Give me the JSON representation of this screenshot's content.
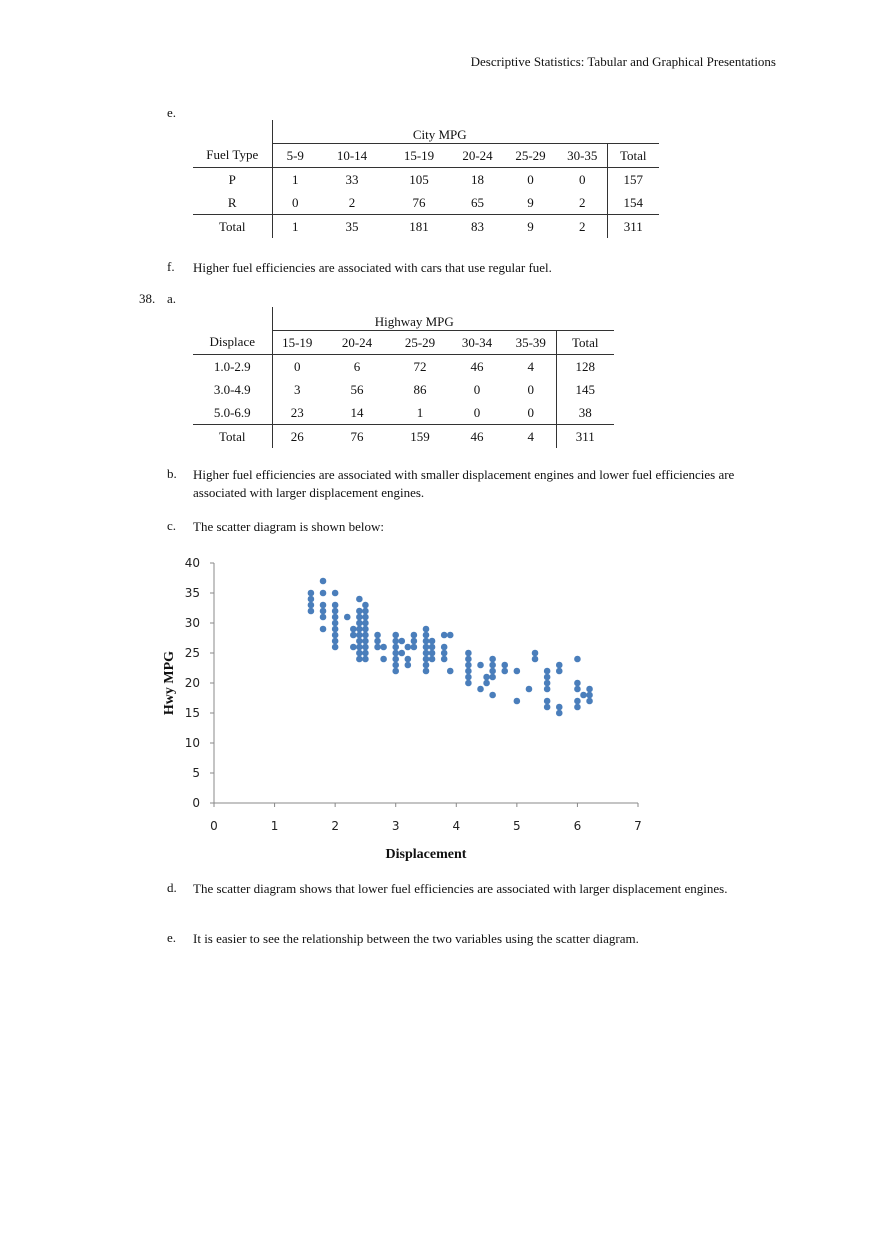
{
  "header": "Descriptive Statistics: Tabular and Graphical Presentations",
  "sec37": {
    "e_label": "e.",
    "table": {
      "group_header": "City MPG",
      "columns": [
        "Fuel Type",
        "5-9",
        "10-14",
        "15-19",
        "20-24",
        "25-29",
        "30-35",
        "Total"
      ],
      "rows": [
        [
          "P",
          "1",
          "33",
          "105",
          "18",
          "0",
          "0",
          "157"
        ],
        [
          "R",
          "0",
          "2",
          "76",
          "65",
          "9",
          "2",
          "154"
        ]
      ],
      "total": [
        "Total",
        "1",
        "35",
        "181",
        "83",
        "9",
        "2",
        "311"
      ]
    },
    "f_label": "f.",
    "f_text": "Higher fuel efficiencies are associated with cars that use regular fuel."
  },
  "sec38": {
    "number": "38.",
    "a_label": "a.",
    "table": {
      "group_header": "Highway MPG",
      "columns": [
        "Displace",
        "15-19",
        "20-24",
        "25-29",
        "30-34",
        "35-39",
        "Total"
      ],
      "rows": [
        [
          "1.0-2.9",
          "0",
          "6",
          "72",
          "46",
          "4",
          "128"
        ],
        [
          "3.0-4.9",
          "3",
          "56",
          "86",
          "0",
          "0",
          "145"
        ],
        [
          "5.0-6.9",
          "23",
          "14",
          "1",
          "0",
          "0",
          "38"
        ]
      ],
      "total": [
        "Total",
        "26",
        "76",
        "159",
        "46",
        "4",
        "311"
      ]
    },
    "b_label": "b.",
    "b_text": "Higher fuel efficiencies are associated with smaller displacement engines and lower fuel efficiencies are associated with larger displacement engines.",
    "c_label": "c.",
    "c_text": "The scatter diagram is shown below:",
    "d_label": "d.",
    "d_text": "The scatter diagram shows that lower fuel efficiencies are associated with larger displacement engines.",
    "e_label": "e.",
    "e_text": "It is easier to see the relationship between the two variables using the scatter diagram."
  },
  "chart_data": {
    "type": "scatter",
    "xlabel": "Displacement",
    "ylabel": "Hwy MPG",
    "xlim": [
      0,
      7
    ],
    "ylim": [
      0,
      40
    ],
    "xticks": [
      "0",
      "1",
      "2",
      "3",
      "4",
      "5",
      "6",
      "7"
    ],
    "yticks": [
      "0",
      "5",
      "10",
      "15",
      "20",
      "25",
      "30",
      "35",
      "40"
    ],
    "grid": false,
    "color": "#4a7ebb",
    "points": [
      [
        1.6,
        32
      ],
      [
        1.6,
        33
      ],
      [
        1.6,
        34
      ],
      [
        1.6,
        35
      ],
      [
        1.8,
        37
      ],
      [
        1.8,
        35
      ],
      [
        1.8,
        33
      ],
      [
        1.8,
        32
      ],
      [
        1.8,
        31
      ],
      [
        1.8,
        29
      ],
      [
        2.0,
        35
      ],
      [
        2.0,
        33
      ],
      [
        2.0,
        32
      ],
      [
        2.0,
        31
      ],
      [
        2.0,
        30
      ],
      [
        2.0,
        29
      ],
      [
        2.0,
        28
      ],
      [
        2.0,
        27
      ],
      [
        2.0,
        26
      ],
      [
        2.2,
        31
      ],
      [
        2.3,
        29
      ],
      [
        2.3,
        28
      ],
      [
        2.3,
        26
      ],
      [
        2.4,
        34
      ],
      [
        2.4,
        32
      ],
      [
        2.4,
        31
      ],
      [
        2.4,
        30
      ],
      [
        2.4,
        29
      ],
      [
        2.4,
        28
      ],
      [
        2.4,
        27
      ],
      [
        2.4,
        26
      ],
      [
        2.4,
        25
      ],
      [
        2.4,
        24
      ],
      [
        2.5,
        33
      ],
      [
        2.5,
        32
      ],
      [
        2.5,
        31
      ],
      [
        2.5,
        30
      ],
      [
        2.5,
        29
      ],
      [
        2.5,
        28
      ],
      [
        2.5,
        27
      ],
      [
        2.5,
        26
      ],
      [
        2.5,
        25
      ],
      [
        2.5,
        24
      ],
      [
        2.7,
        28
      ],
      [
        2.7,
        27
      ],
      [
        2.7,
        26
      ],
      [
        2.8,
        26
      ],
      [
        2.8,
        24
      ],
      [
        3.0,
        28
      ],
      [
        3.0,
        27
      ],
      [
        3.0,
        26
      ],
      [
        3.0,
        25
      ],
      [
        3.0,
        24
      ],
      [
        3.0,
        23
      ],
      [
        3.0,
        22
      ],
      [
        3.1,
        27
      ],
      [
        3.1,
        25
      ],
      [
        3.2,
        26
      ],
      [
        3.2,
        24
      ],
      [
        3.2,
        23
      ],
      [
        3.3,
        28
      ],
      [
        3.3,
        27
      ],
      [
        3.3,
        26
      ],
      [
        3.5,
        29
      ],
      [
        3.5,
        28
      ],
      [
        3.5,
        27
      ],
      [
        3.5,
        26
      ],
      [
        3.5,
        25
      ],
      [
        3.5,
        24
      ],
      [
        3.5,
        23
      ],
      [
        3.5,
        22
      ],
      [
        3.6,
        27
      ],
      [
        3.6,
        26
      ],
      [
        3.6,
        25
      ],
      [
        3.6,
        24
      ],
      [
        3.8,
        28
      ],
      [
        3.8,
        26
      ],
      [
        3.8,
        25
      ],
      [
        3.8,
        24
      ],
      [
        3.9,
        28
      ],
      [
        3.9,
        22
      ],
      [
        4.2,
        25
      ],
      [
        4.2,
        24
      ],
      [
        4.2,
        23
      ],
      [
        4.2,
        22
      ],
      [
        4.2,
        21
      ],
      [
        4.2,
        20
      ],
      [
        4.4,
        23
      ],
      [
        4.4,
        19
      ],
      [
        4.5,
        21
      ],
      [
        4.5,
        20
      ],
      [
        4.6,
        24
      ],
      [
        4.6,
        23
      ],
      [
        4.6,
        22
      ],
      [
        4.6,
        21
      ],
      [
        4.6,
        18
      ],
      [
        4.8,
        23
      ],
      [
        4.8,
        22
      ],
      [
        5.0,
        22
      ],
      [
        5.0,
        17
      ],
      [
        5.2,
        19
      ],
      [
        5.3,
        25
      ],
      [
        5.3,
        24
      ],
      [
        5.5,
        22
      ],
      [
        5.5,
        21
      ],
      [
        5.5,
        20
      ],
      [
        5.5,
        19
      ],
      [
        5.5,
        17
      ],
      [
        5.5,
        16
      ],
      [
        5.7,
        23
      ],
      [
        5.7,
        22
      ],
      [
        5.7,
        16
      ],
      [
        5.7,
        15
      ],
      [
        6.0,
        24
      ],
      [
        6.0,
        20
      ],
      [
        6.0,
        19
      ],
      [
        6.0,
        17
      ],
      [
        6.0,
        16
      ],
      [
        6.1,
        18
      ],
      [
        6.2,
        19
      ],
      [
        6.2,
        18
      ],
      [
        6.2,
        17
      ]
    ]
  }
}
